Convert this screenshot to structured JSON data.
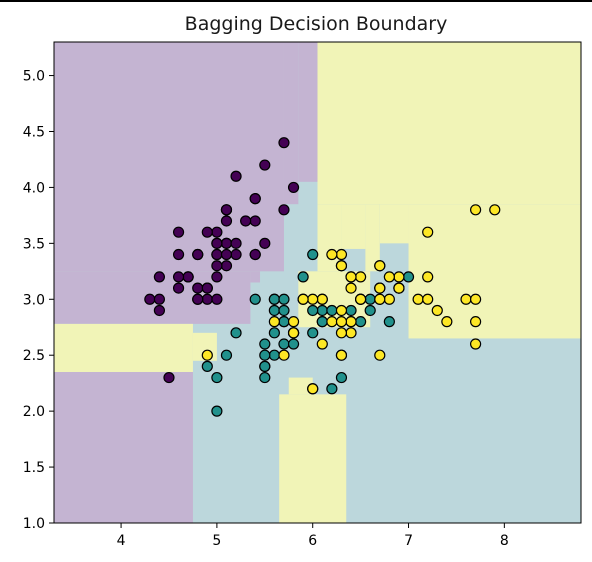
{
  "chart_data": {
    "type": "scatter",
    "title": "Bagging Decision Boundary",
    "xlabel": "",
    "ylabel": "",
    "xlim": [
      3.3,
      8.8
    ],
    "ylim": [
      1.0,
      5.3
    ],
    "xticks": [
      4,
      5,
      6,
      7,
      8
    ],
    "yticks": [
      1.0,
      1.5,
      2.0,
      2.5,
      3.0,
      3.5,
      4.0,
      4.5,
      5.0
    ],
    "grid": false,
    "legend": "none",
    "class_colors": [
      "#440154",
      "#21918c",
      "#fde725"
    ],
    "region_colors": [
      "#c4b4d2",
      "#bcd7dc",
      "#f1f4b7"
    ],
    "decision_regions": [
      {
        "class": 1,
        "x": [
          3.3,
          8.8
        ],
        "y": [
          1.0,
          5.3
        ]
      },
      {
        "class": 0,
        "x": [
          3.3,
          4.75
        ],
        "y": [
          1.0,
          2.35
        ]
      },
      {
        "class": 0,
        "x": [
          3.3,
          5.7
        ],
        "y": [
          3.25,
          5.3
        ]
      },
      {
        "class": 0,
        "x": [
          3.3,
          5.35
        ],
        "y": [
          2.78,
          3.25
        ]
      },
      {
        "class": 0,
        "x": [
          5.35,
          5.45
        ],
        "y": [
          3.15,
          3.25
        ]
      },
      {
        "class": 0,
        "x": [
          5.7,
          5.85
        ],
        "y": [
          3.85,
          5.3
        ]
      },
      {
        "class": 0,
        "x": [
          5.85,
          6.05
        ],
        "y": [
          4.05,
          5.3
        ]
      },
      {
        "class": 2,
        "x": [
          6.05,
          8.8
        ],
        "y": [
          3.85,
          5.3
        ]
      },
      {
        "class": 2,
        "x": [
          6.05,
          6.3
        ],
        "y": [
          3.25,
          3.85
        ]
      },
      {
        "class": 2,
        "x": [
          6.3,
          6.55
        ],
        "y": [
          3.45,
          3.85
        ]
      },
      {
        "class": 2,
        "x": [
          6.55,
          6.7
        ],
        "y": [
          3.25,
          3.85
        ]
      },
      {
        "class": 2,
        "x": [
          6.7,
          7.0
        ],
        "y": [
          3.5,
          3.85
        ]
      },
      {
        "class": 2,
        "x": [
          7.0,
          8.8
        ],
        "y": [
          2.65,
          3.85
        ]
      },
      {
        "class": 2,
        "x": [
          3.3,
          4.75
        ],
        "y": [
          2.35,
          2.78
        ]
      },
      {
        "class": 2,
        "x": [
          4.75,
          5.0
        ],
        "y": [
          2.45,
          2.7
        ]
      },
      {
        "class": 2,
        "x": [
          5.65,
          6.35
        ],
        "y": [
          1.0,
          2.15
        ]
      },
      {
        "class": 2,
        "x": [
          5.75,
          6.0
        ],
        "y": [
          2.15,
          2.3
        ]
      },
      {
        "class": 2,
        "x": [
          5.85,
          6.6
        ],
        "y": [
          2.75,
          3.25
        ]
      }
    ],
    "series": [
      {
        "class": 0,
        "x": [
          5.1,
          4.9,
          4.7,
          4.6,
          5.0,
          5.4,
          4.6,
          5.0,
          4.4,
          4.9,
          5.4,
          4.8,
          4.8,
          4.3,
          5.8,
          5.7,
          5.4,
          5.1,
          5.7,
          5.1,
          5.4,
          5.1,
          4.6,
          5.1,
          4.8,
          5.0,
          5.0,
          5.2,
          5.2,
          4.7,
          4.8,
          5.4,
          5.2,
          5.5,
          4.9,
          5.0,
          5.5,
          4.9,
          4.4,
          5.1,
          5.0,
          4.5,
          4.4,
          5.0,
          5.1,
          4.8,
          5.1,
          4.6,
          5.3,
          5.0
        ],
        "y": [
          3.5,
          3.0,
          3.2,
          3.1,
          3.6,
          3.9,
          3.4,
          3.4,
          2.9,
          3.1,
          3.7,
          3.4,
          3.0,
          3.0,
          4.0,
          4.4,
          3.9,
          3.5,
          3.8,
          3.8,
          3.4,
          3.7,
          3.6,
          3.3,
          3.4,
          3.0,
          3.4,
          3.5,
          3.4,
          3.2,
          3.1,
          3.4,
          4.1,
          4.2,
          3.1,
          3.2,
          3.5,
          3.6,
          3.0,
          3.4,
          3.5,
          2.3,
          3.2,
          3.5,
          3.8,
          3.0,
          3.8,
          3.2,
          3.7,
          3.3
        ]
      },
      {
        "class": 1,
        "x": [
          7.0,
          6.4,
          6.9,
          5.5,
          6.5,
          5.7,
          6.3,
          4.9,
          6.6,
          5.2,
          5.0,
          5.9,
          6.0,
          6.1,
          5.6,
          6.7,
          5.6,
          5.8,
          6.2,
          5.6,
          5.9,
          6.1,
          6.3,
          6.1,
          6.4,
          6.6,
          6.8,
          6.7,
          6.0,
          5.7,
          5.5,
          5.5,
          5.8,
          6.0,
          5.4,
          6.0,
          6.7,
          6.3,
          5.6,
          5.5,
          5.5,
          6.1,
          5.8,
          5.0,
          5.6,
          5.7,
          5.7,
          6.2,
          5.1,
          5.7
        ],
        "y": [
          3.2,
          3.2,
          3.1,
          2.3,
          2.8,
          2.8,
          3.3,
          2.4,
          2.9,
          2.7,
          2.0,
          3.0,
          2.2,
          2.9,
          2.9,
          3.1,
          3.0,
          2.7,
          2.2,
          2.5,
          3.2,
          2.8,
          2.5,
          2.8,
          2.9,
          3.0,
          2.8,
          3.0,
          2.9,
          2.6,
          2.4,
          2.4,
          2.7,
          2.7,
          3.0,
          3.4,
          3.1,
          2.3,
          3.0,
          2.5,
          2.6,
          3.0,
          2.6,
          2.3,
          2.7,
          3.0,
          2.9,
          2.9,
          2.5,
          2.8
        ]
      },
      {
        "class": 2,
        "x": [
          6.3,
          5.8,
          7.1,
          6.3,
          6.5,
          7.6,
          4.9,
          7.3,
          6.7,
          7.2,
          6.5,
          6.4,
          6.8,
          5.7,
          5.8,
          6.4,
          6.5,
          7.7,
          7.7,
          6.0,
          6.9,
          5.6,
          7.7,
          6.3,
          6.7,
          7.2,
          6.2,
          6.1,
          6.4,
          7.2,
          7.4,
          7.9,
          6.4,
          6.3,
          6.1,
          7.7,
          6.3,
          6.4,
          6.0,
          6.9,
          6.7,
          6.9,
          5.8,
          6.8,
          6.7,
          6.7,
          6.3,
          6.5,
          6.2,
          5.9
        ],
        "y": [
          3.3,
          2.7,
          3.0,
          2.9,
          3.0,
          3.0,
          2.5,
          2.9,
          2.5,
          3.6,
          3.2,
          2.7,
          3.0,
          2.5,
          2.8,
          3.2,
          3.0,
          3.8,
          2.6,
          2.2,
          3.2,
          2.8,
          2.8,
          2.7,
          3.3,
          3.2,
          2.8,
          3.0,
          2.8,
          3.0,
          2.8,
          3.8,
          2.8,
          2.8,
          2.6,
          3.0,
          3.4,
          3.1,
          3.0,
          3.1,
          3.1,
          3.1,
          2.7,
          3.2,
          3.3,
          3.0,
          2.5,
          3.0,
          3.4,
          3.0
        ]
      }
    ]
  }
}
